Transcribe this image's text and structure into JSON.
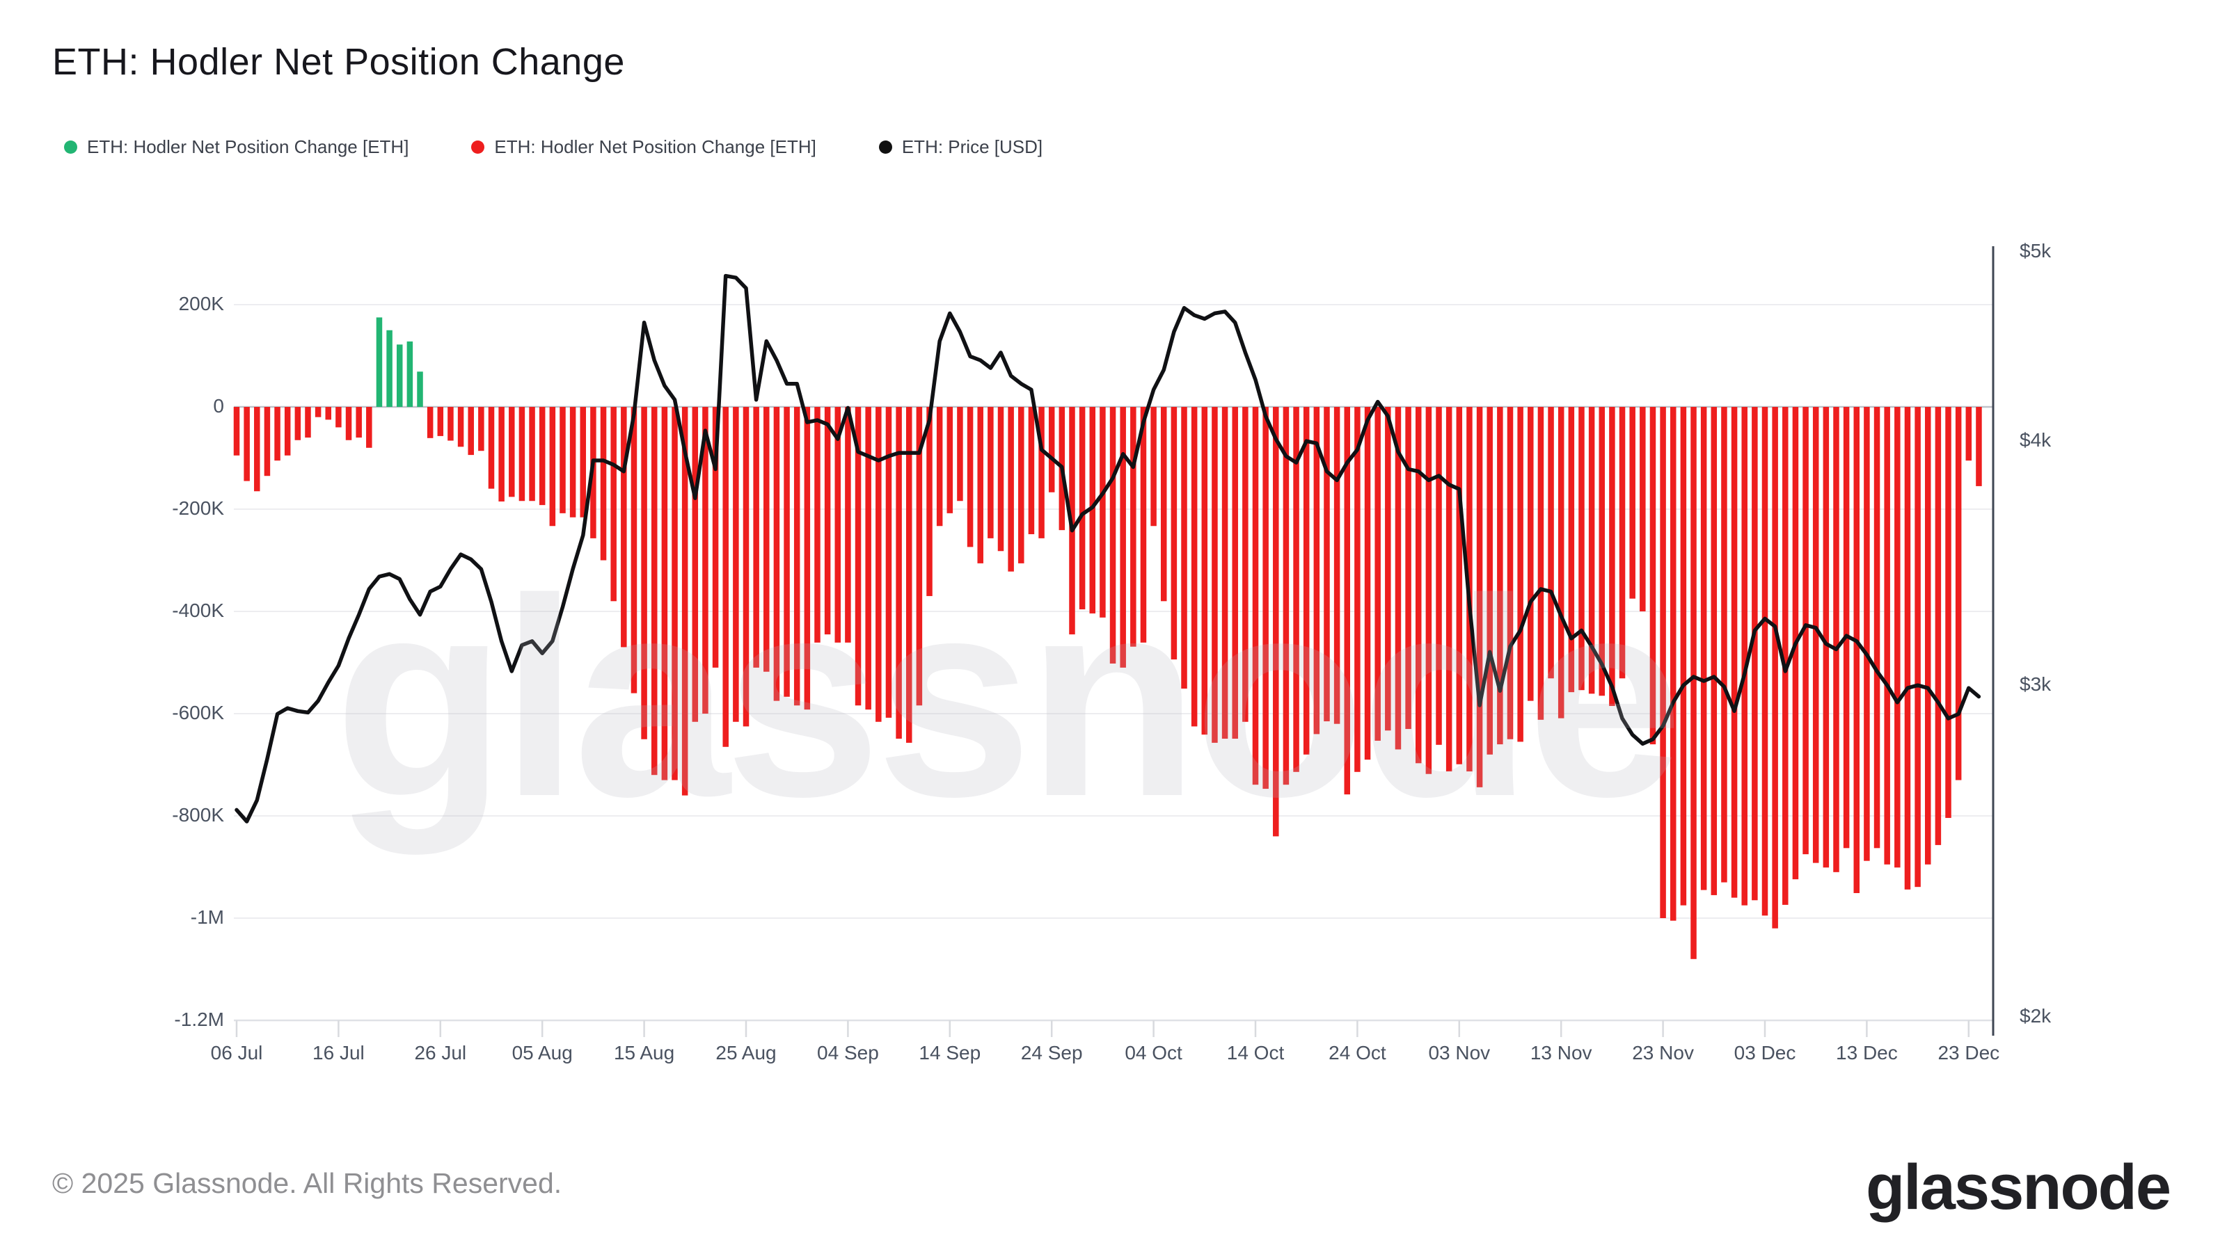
{
  "title": "ETH: Hodler Net Position Change",
  "legend": {
    "items": [
      {
        "label": "ETH: Hodler Net Position Change [ETH]",
        "color": "#22b573"
      },
      {
        "label": "ETH: Hodler Net Position Change [ETH]",
        "color": "#ee1e1e"
      },
      {
        "label": "ETH: Price [USD]",
        "color": "#111111"
      }
    ]
  },
  "watermark": {
    "text": "glassnode"
  },
  "footer": {
    "copyright": "© 2025 Glassnode. All Rights Reserved.",
    "logo_text": "glassnode"
  },
  "colors": {
    "bar_negative": "#ee1e1e",
    "bar_positive": "#22b573",
    "price_line": "#101114",
    "gridline": "#ededf0",
    "zero_line": "#c0c3c9",
    "axis_spine": "#3f4653",
    "axis_text": "#4a5260"
  },
  "chart_data": {
    "type": "mixed-bar-line",
    "start_date": "06 Jul",
    "end_date": "24 Dec",
    "x_tick_labels": [
      "06 Jul",
      "16 Jul",
      "26 Jul",
      "05 Aug",
      "15 Aug",
      "25 Aug",
      "04 Sep",
      "14 Sep",
      "24 Sep",
      "04 Oct",
      "14 Oct",
      "24 Oct",
      "03 Nov",
      "13 Nov",
      "23 Nov",
      "03 Dec",
      "13 Dec",
      "23 Dec"
    ],
    "x_tick_day_index": [
      0,
      10,
      20,
      30,
      40,
      50,
      60,
      70,
      80,
      90,
      100,
      110,
      120,
      130,
      140,
      150,
      160,
      170
    ],
    "y_left": {
      "label_unit": "ETH",
      "tick_labels": [
        "200K",
        "0",
        "-200K",
        "-400K",
        "-600K",
        "-800K",
        "-1M",
        "-1.2M"
      ],
      "tick_values_k": [
        200,
        0,
        -200,
        -400,
        -600,
        -800,
        -1000,
        -1200
      ],
      "range_k": [
        -1290,
        305
      ]
    },
    "y_right": {
      "label_unit": "USD",
      "scale": "log",
      "tick_labels": [
        "$5k",
        "$4k",
        "$3k",
        "$2k"
      ],
      "tick_values": [
        5000,
        4000,
        3000,
        2000
      ]
    },
    "series": [
      {
        "name": "ETH: Hodler Net Position Change [ETH]",
        "kind": "bar",
        "unit": "thousand ETH per day",
        "values_k": [
          -95,
          -145,
          -165,
          -135,
          -105,
          -95,
          -65,
          -60,
          -20,
          -25,
          -40,
          -65,
          -60,
          -80,
          175,
          150,
          122,
          128,
          69,
          -61,
          -57,
          -66,
          -78,
          -94,
          -86,
          -160,
          -185,
          -176,
          -184,
          -184,
          -192,
          -233,
          -208,
          -216,
          -216,
          -257,
          -300,
          -380,
          -470,
          -560,
          -650,
          -720,
          -730,
          -730,
          -760,
          -616,
          -600,
          -510,
          -665,
          -616,
          -625,
          -510,
          -518,
          -575,
          -567,
          -584,
          -592,
          -461,
          -445,
          -461,
          -461,
          -584,
          -592,
          -616,
          -608,
          -649,
          -657,
          -584,
          -370,
          -233,
          -208,
          -184,
          -274,
          -306,
          -257,
          -282,
          -322,
          -306,
          -249,
          -257,
          -167,
          -241,
          -445,
          -396,
          -404,
          -412,
          -502,
          -510,
          -469,
          -461,
          -233,
          -380,
          -494,
          -551,
          -625,
          -641,
          -657,
          -649,
          -649,
          -616,
          -739,
          -747,
          -840,
          -739,
          -714,
          -680,
          -640,
          -615,
          -620,
          -758,
          -714,
          -690,
          -653,
          -633,
          -670,
          -630,
          -697,
          -718,
          -661,
          -713,
          -699,
          -713,
          -744,
          -680,
          -660,
          -650,
          -655,
          -575,
          -612,
          -531,
          -609,
          -558,
          -554,
          -561,
          -565,
          -585,
          -531,
          -375,
          -400,
          -660,
          -1000,
          -1005,
          -975,
          -1080,
          -945,
          -955,
          -930,
          -960,
          -975,
          -965,
          -995,
          -1020,
          -974,
          -924,
          -875,
          -892,
          -901,
          -910,
          -863,
          -951,
          -888,
          -863,
          -895,
          -901,
          -944,
          -939,
          -895,
          -857,
          -804,
          -730,
          -105,
          -155
        ]
      },
      {
        "name": "ETH: Price [USD]",
        "kind": "line",
        "unit": "USD",
        "values": [
          2590,
          2555,
          2620,
          2750,
          2900,
          2920,
          2910,
          2905,
          2945,
          3010,
          3070,
          3170,
          3260,
          3360,
          3410,
          3420,
          3400,
          3320,
          3260,
          3350,
          3370,
          3440,
          3500,
          3480,
          3440,
          3310,
          3160,
          3050,
          3145,
          3160,
          3115,
          3160,
          3290,
          3440,
          3580,
          3910,
          3910,
          3890,
          3860,
          4130,
          4600,
          4400,
          4270,
          4200,
          3950,
          3740,
          4050,
          3870,
          4860,
          4850,
          4790,
          4200,
          4500,
          4400,
          4280,
          4280,
          4090,
          4100,
          4080,
          4010,
          4160,
          3950,
          3930,
          3910,
          3930,
          3945,
          3945,
          3945,
          4100,
          4500,
          4650,
          4550,
          4420,
          4400,
          4360,
          4440,
          4320,
          4280,
          4250,
          3960,
          3920,
          3880,
          3600,
          3670,
          3700,
          3760,
          3830,
          3940,
          3880,
          4090,
          4250,
          4350,
          4550,
          4680,
          4640,
          4620,
          4650,
          4660,
          4600,
          4440,
          4300,
          4120,
          4010,
          3930,
          3900,
          4000,
          3990,
          3860,
          3820,
          3900,
          3960,
          4100,
          4190,
          4120,
          3950,
          3870,
          3860,
          3820,
          3840,
          3800,
          3780,
          3300,
          2930,
          3120,
          2980,
          3140,
          3200,
          3310,
          3360,
          3350,
          3255,
          3170,
          3200,
          3140,
          3075,
          2995,
          2885,
          2830,
          2800,
          2815,
          2860,
          2940,
          3000,
          3030,
          3015,
          3030,
          2995,
          2910,
          3040,
          3200,
          3245,
          3215,
          3050,
          3150,
          3220,
          3210,
          3150,
          3130,
          3180,
          3160,
          3110,
          3050,
          3000,
          2940,
          2990,
          3000,
          2990,
          2940,
          2885,
          2900,
          2990,
          2960
        ]
      }
    ]
  }
}
